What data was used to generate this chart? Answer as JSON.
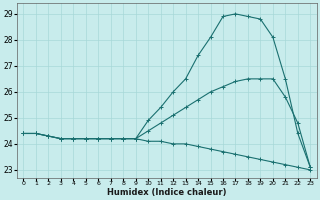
{
  "xlabel": "Humidex (Indice chaleur)",
  "ylabel": "",
  "background_color": "#c8ecec",
  "grid_color": "#a8d8d8",
  "line_color": "#1a7070",
  "xlim": [
    -0.5,
    23.5
  ],
  "ylim": [
    22.7,
    29.4
  ],
  "xticks": [
    0,
    1,
    2,
    3,
    4,
    5,
    6,
    7,
    8,
    9,
    10,
    11,
    12,
    13,
    14,
    15,
    16,
    17,
    18,
    19,
    20,
    21,
    22,
    23
  ],
  "yticks": [
    23,
    24,
    25,
    26,
    27,
    28,
    29
  ],
  "series": [
    {
      "x": [
        0,
        1,
        2,
        3,
        4,
        5,
        6,
        7,
        8,
        9,
        10,
        11,
        12,
        13,
        14,
        15,
        16,
        17,
        18,
        19,
        20,
        21,
        22,
        23
      ],
      "y": [
        24.4,
        24.4,
        24.3,
        24.2,
        24.2,
        24.2,
        24.2,
        24.2,
        24.2,
        24.2,
        24.1,
        24.1,
        24.0,
        24.0,
        23.9,
        23.8,
        23.7,
        23.6,
        23.5,
        23.4,
        23.3,
        23.2,
        23.1,
        23.0
      ],
      "marker": "+"
    },
    {
      "x": [
        0,
        1,
        2,
        3,
        4,
        5,
        6,
        7,
        8,
        9,
        10,
        11,
        12,
        13,
        14,
        15,
        16,
        17,
        18,
        19,
        20,
        21,
        22,
        23
      ],
      "y": [
        24.4,
        24.4,
        24.3,
        24.2,
        24.2,
        24.2,
        24.2,
        24.2,
        24.2,
        24.2,
        24.5,
        24.8,
        25.1,
        25.4,
        25.7,
        26.0,
        26.2,
        26.4,
        26.5,
        26.5,
        26.5,
        25.8,
        24.8,
        23.1
      ],
      "marker": "+"
    },
    {
      "x": [
        0,
        1,
        2,
        3,
        4,
        5,
        6,
        7,
        8,
        9,
        10,
        11,
        12,
        13,
        14,
        15,
        16,
        17,
        18,
        19,
        20,
        21,
        22,
        23
      ],
      "y": [
        24.4,
        24.4,
        24.3,
        24.2,
        24.2,
        24.2,
        24.2,
        24.2,
        24.2,
        24.2,
        24.9,
        25.4,
        26.0,
        26.5,
        27.4,
        28.1,
        28.9,
        29.0,
        28.9,
        28.8,
        28.1,
        26.5,
        24.4,
        23.1
      ],
      "marker": "+"
    }
  ]
}
